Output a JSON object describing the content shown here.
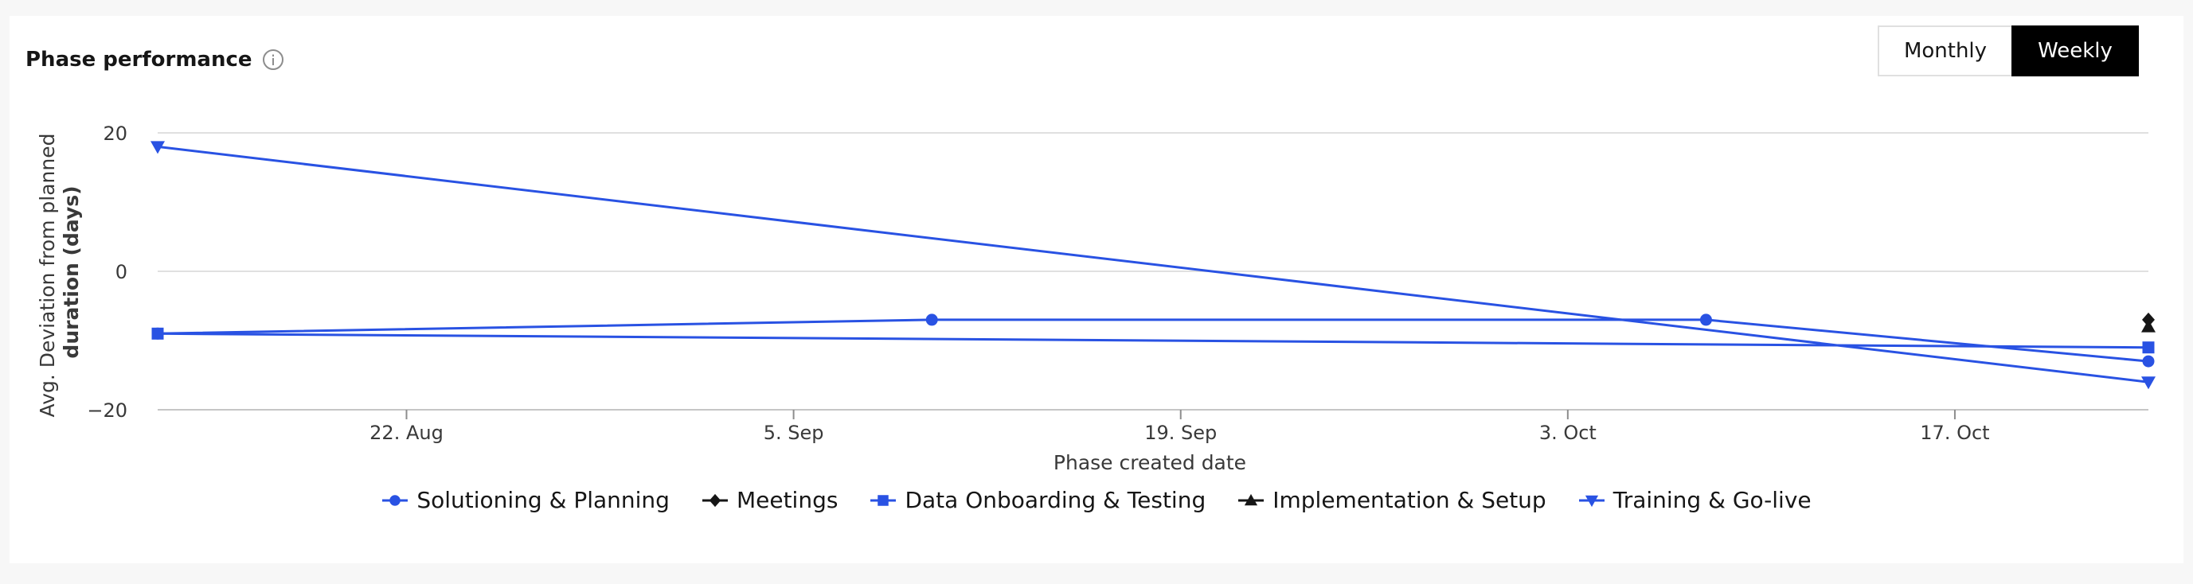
{
  "header": {
    "title": "Phase performance",
    "info_icon": "info-icon"
  },
  "toggle": {
    "monthly_label": "Monthly",
    "weekly_label": "Weekly",
    "selected": "Weekly"
  },
  "colors": {
    "series": "#2952e3",
    "black_series": "#161616",
    "grid": "#e0e0e0",
    "axis_text": "#393939"
  },
  "chart_data": {
    "type": "line",
    "xlabel": "Phase created date",
    "ylabel_main": "Avg. Deviation from planned",
    "ylabel_unit": "duration (days)",
    "x_tick_labels": [
      "22. Aug",
      "5. Sep",
      "19. Sep",
      "3. Oct",
      "17. Oct"
    ],
    "x_ticks": [
      "2024-08-22",
      "2024-09-05",
      "2024-09-19",
      "2024-10-03",
      "2024-10-17"
    ],
    "xlim": [
      "2024-08-13",
      "2024-10-24"
    ],
    "y_ticks": [
      20,
      0,
      -20
    ],
    "y_tick_labels": [
      "20",
      "0",
      "−20"
    ],
    "ylim": [
      -20,
      20
    ],
    "grid": "horizontal",
    "legend_position": "bottom",
    "series": [
      {
        "name": "Solutioning & Planning",
        "marker": "circle",
        "color": "#2952e3",
        "points": [
          [
            "2024-08-13",
            -9
          ],
          [
            "2024-09-10",
            -7
          ],
          [
            "2024-10-08",
            -7
          ],
          [
            "2024-10-24",
            -13
          ]
        ]
      },
      {
        "name": "Meetings",
        "marker": "diamond",
        "color": "#161616",
        "points": [
          [
            "2024-10-24",
            -7
          ]
        ]
      },
      {
        "name": "Data Onboarding & Testing",
        "marker": "square",
        "color": "#2952e3",
        "points": [
          [
            "2024-08-13",
            -9
          ],
          [
            "2024-10-24",
            -11
          ]
        ]
      },
      {
        "name": "Implementation & Setup",
        "marker": "triangle-up",
        "color": "#161616",
        "points": [
          [
            "2024-10-24",
            -8
          ]
        ]
      },
      {
        "name": "Training & Go-live",
        "marker": "triangle-down",
        "color": "#2952e3",
        "points": [
          [
            "2024-08-13",
            18
          ],
          [
            "2024-10-24",
            -16
          ]
        ]
      }
    ]
  }
}
